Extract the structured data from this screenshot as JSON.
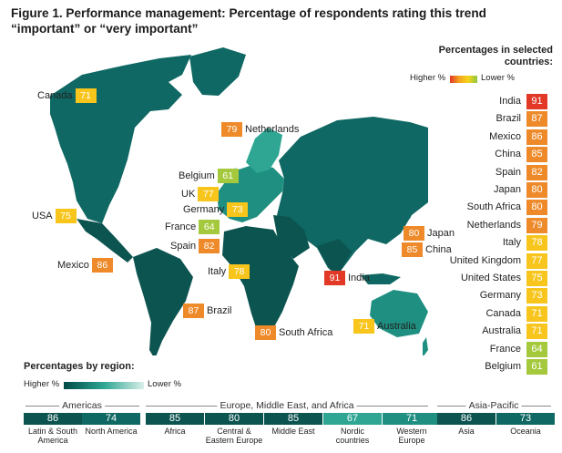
{
  "title": "Figure 1. Performance management: Percentage of respondents rating this trend “important” or “very important”",
  "legend": {
    "title": "Percentages in selected countries:",
    "higher": "Higher %",
    "lower": "Lower %"
  },
  "countries": [
    {
      "name": "India",
      "value": 91,
      "color": "#e23826"
    },
    {
      "name": "Brazil",
      "value": 87,
      "color": "#ee8a2a"
    },
    {
      "name": "Mexico",
      "value": 86,
      "color": "#ee8a2a"
    },
    {
      "name": "China",
      "value": 85,
      "color": "#ee8a2a"
    },
    {
      "name": "Spain",
      "value": 82,
      "color": "#ee8a2a"
    },
    {
      "name": "Japan",
      "value": 80,
      "color": "#ee8a2a"
    },
    {
      "name": "South Africa",
      "value": 80,
      "color": "#ee8a2a"
    },
    {
      "name": "Netherlands",
      "value": 79,
      "color": "#ee8a2a"
    },
    {
      "name": "Italy",
      "value": 78,
      "color": "#f7c51c"
    },
    {
      "name": "United Kingdom",
      "value": 77,
      "color": "#f7c51c"
    },
    {
      "name": "United States",
      "value": 75,
      "color": "#f7c51c"
    },
    {
      "name": "Germany",
      "value": 73,
      "color": "#f7c51c"
    },
    {
      "name": "Canada",
      "value": 71,
      "color": "#f7c51c"
    },
    {
      "name": "Australia",
      "value": 71,
      "color": "#f7c51c"
    },
    {
      "name": "France",
      "value": 64,
      "color": "#a5c93c"
    },
    {
      "name": "Belgium",
      "value": 61,
      "color": "#a5c93c"
    }
  ],
  "map_labels": [
    {
      "name": "Canada",
      "value": "71",
      "color": "#f7c51c",
      "side": "left"
    },
    {
      "name": "Netherlands",
      "value": "79",
      "color": "#ee8a2a",
      "side": "right"
    },
    {
      "name": "Belgium",
      "value": "61",
      "color": "#a5c93c",
      "side": "left"
    },
    {
      "name": "UK",
      "value": "77",
      "color": "#f7c51c",
      "side": "left"
    },
    {
      "name": "Germany",
      "value": "73",
      "color": "#f7c51c",
      "side": "left"
    },
    {
      "name": "France",
      "value": "64",
      "color": "#a5c93c",
      "side": "left"
    },
    {
      "name": "Spain",
      "value": "82",
      "color": "#ee8a2a",
      "side": "left"
    },
    {
      "name": "USA",
      "value": "75",
      "color": "#f7c51c",
      "side": "left"
    },
    {
      "name": "Mexico",
      "value": "86",
      "color": "#ee8a2a",
      "side": "left"
    },
    {
      "name": "Italy",
      "value": "78",
      "color": "#f7c51c",
      "side": "left"
    },
    {
      "name": "Brazil",
      "value": "87",
      "color": "#ee8a2a",
      "side": "right"
    },
    {
      "name": "South Africa",
      "value": "80",
      "color": "#ee8a2a",
      "side": "right"
    },
    {
      "name": "India",
      "value": "91",
      "color": "#e23826",
      "side": "right"
    },
    {
      "name": "Japan",
      "value": "80",
      "color": "#ee8a2a",
      "side": "right"
    },
    {
      "name": "China",
      "value": "85",
      "color": "#ee8a2a",
      "side": "right"
    },
    {
      "name": "Australia",
      "value": "71",
      "color": "#f7c51c",
      "side": "right"
    }
  ],
  "regions": {
    "title": "Percentages by region:",
    "higher": "Higher %",
    "lower": "Lower %",
    "groups": [
      "Americas",
      "Europe, Middle East, and Africa",
      "Asia-Pacific"
    ],
    "items": [
      {
        "name": "Latin & South America",
        "value": "86",
        "color": "#0c5450"
      },
      {
        "name": "North America",
        "value": "74",
        "color": "#0f6863"
      },
      {
        "name": "Africa",
        "value": "85",
        "color": "#0c5450"
      },
      {
        "name": "Central & Eastern Europe",
        "value": "80",
        "color": "#0c5450"
      },
      {
        "name": "Middle East",
        "value": "85",
        "color": "#0c5450"
      },
      {
        "name": "Nordic countries",
        "value": "67",
        "color": "#2ea693"
      },
      {
        "name": "Western Europe",
        "value": "71",
        "color": "#1e8f80"
      },
      {
        "name": "Asia",
        "value": "86",
        "color": "#0c5450"
      },
      {
        "name": "Oceania",
        "value": "73",
        "color": "#0f6863"
      }
    ]
  }
}
